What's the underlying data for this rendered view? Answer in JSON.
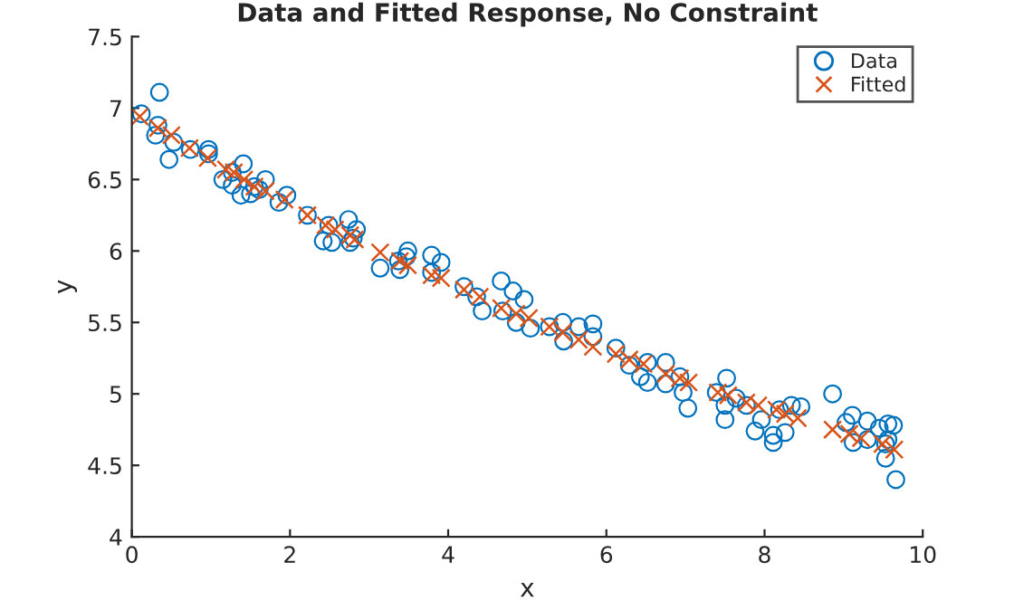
{
  "chart_data": {
    "type": "scatter",
    "title": "Data and Fitted Response, No Constraint",
    "xlabel": "x",
    "ylabel": "y",
    "xlim": [
      0,
      10
    ],
    "ylim": [
      4,
      7.5
    ],
    "xticks": [
      0,
      2,
      4,
      6,
      8,
      10
    ],
    "yticks": [
      4,
      4.5,
      5,
      5.5,
      6,
      6.5,
      7,
      7.5
    ],
    "grid": false,
    "legend": "top right",
    "series": [
      {
        "name": "Data",
        "color": "#0072bd",
        "marker": "circle",
        "x": [
          0.12,
          0.35,
          0.33,
          0.3,
          0.53,
          0.47,
          0.74,
          0.97,
          0.97,
          1.15,
          1.27,
          1.41,
          1.27,
          1.38,
          1.5,
          1.55,
          1.69,
          1.61,
          1.86,
          1.96,
          2.22,
          2.49,
          2.42,
          2.53,
          2.74,
          2.84,
          2.76,
          2.8,
          3.14,
          3.37,
          3.49,
          3.47,
          3.39,
          3.79,
          3.91,
          3.79,
          4.2,
          4.36,
          4.43,
          4.67,
          4.82,
          4.96,
          4.69,
          4.86,
          5.04,
          5.28,
          5.45,
          5.65,
          5.83,
          5.46,
          5.83,
          6.12,
          6.29,
          6.52,
          6.43,
          6.52,
          6.75,
          6.75,
          6.93,
          6.97,
          7.03,
          7.52,
          7.39,
          7.5,
          7.5,
          7.64,
          7.88,
          7.77,
          7.96,
          8.11,
          8.11,
          8.26,
          8.19,
          8.34,
          8.46,
          8.86,
          9.03,
          9.11,
          9.12,
          9.3,
          9.3,
          9.45,
          9.56,
          9.63,
          9.53,
          9.53,
          9.66,
          9.56
        ],
        "values": [
          6.96,
          7.11,
          6.88,
          6.81,
          6.76,
          6.64,
          6.71,
          6.71,
          6.68,
          6.5,
          6.55,
          6.61,
          6.46,
          6.39,
          6.4,
          6.45,
          6.5,
          6.43,
          6.34,
          6.39,
          6.25,
          6.18,
          6.07,
          6.06,
          6.22,
          6.15,
          6.06,
          6.09,
          5.88,
          5.93,
          6.0,
          5.96,
          5.87,
          5.97,
          5.92,
          5.85,
          5.75,
          5.68,
          5.58,
          5.79,
          5.72,
          5.66,
          5.58,
          5.5,
          5.46,
          5.47,
          5.5,
          5.47,
          5.49,
          5.37,
          5.4,
          5.32,
          5.2,
          5.22,
          5.12,
          5.08,
          5.22,
          5.07,
          5.12,
          5.01,
          4.9,
          5.11,
          5.01,
          4.92,
          4.82,
          4.97,
          4.74,
          4.92,
          4.82,
          4.71,
          4.66,
          4.73,
          4.89,
          4.92,
          4.91,
          5.0,
          4.8,
          4.85,
          4.66,
          4.81,
          4.68,
          4.76,
          4.79,
          4.78,
          4.65,
          4.55,
          4.4,
          4.68
        ]
      },
      {
        "name": "Fitted",
        "color": "#d95319",
        "marker": "cross",
        "x": [
          0.1,
          0.33,
          0.5,
          0.73,
          0.96,
          1.19,
          1.29,
          1.42,
          1.55,
          1.69,
          1.93,
          2.22,
          2.45,
          2.57,
          2.76,
          2.82,
          3.14,
          3.39,
          3.49,
          3.79,
          3.91,
          4.2,
          4.4,
          4.67,
          4.86,
          5.02,
          5.28,
          5.45,
          5.65,
          5.83,
          6.12,
          6.29,
          6.47,
          6.75,
          6.93,
          7.04,
          7.41,
          7.54,
          7.77,
          7.92,
          8.15,
          8.26,
          8.42,
          8.86,
          9.07,
          9.22,
          9.49,
          9.64
        ],
        "values": [
          6.94,
          6.86,
          6.81,
          6.72,
          6.65,
          6.57,
          6.55,
          6.5,
          6.45,
          6.42,
          6.36,
          6.25,
          6.18,
          6.15,
          6.11,
          6.08,
          5.99,
          5.93,
          5.9,
          5.83,
          5.81,
          5.73,
          5.68,
          5.6,
          5.56,
          5.53,
          5.47,
          5.43,
          5.38,
          5.33,
          5.28,
          5.24,
          5.21,
          5.14,
          5.11,
          5.08,
          5.01,
          4.99,
          4.94,
          4.92,
          4.89,
          4.86,
          4.83,
          4.75,
          4.72,
          4.69,
          4.65,
          4.61
        ]
      }
    ]
  }
}
